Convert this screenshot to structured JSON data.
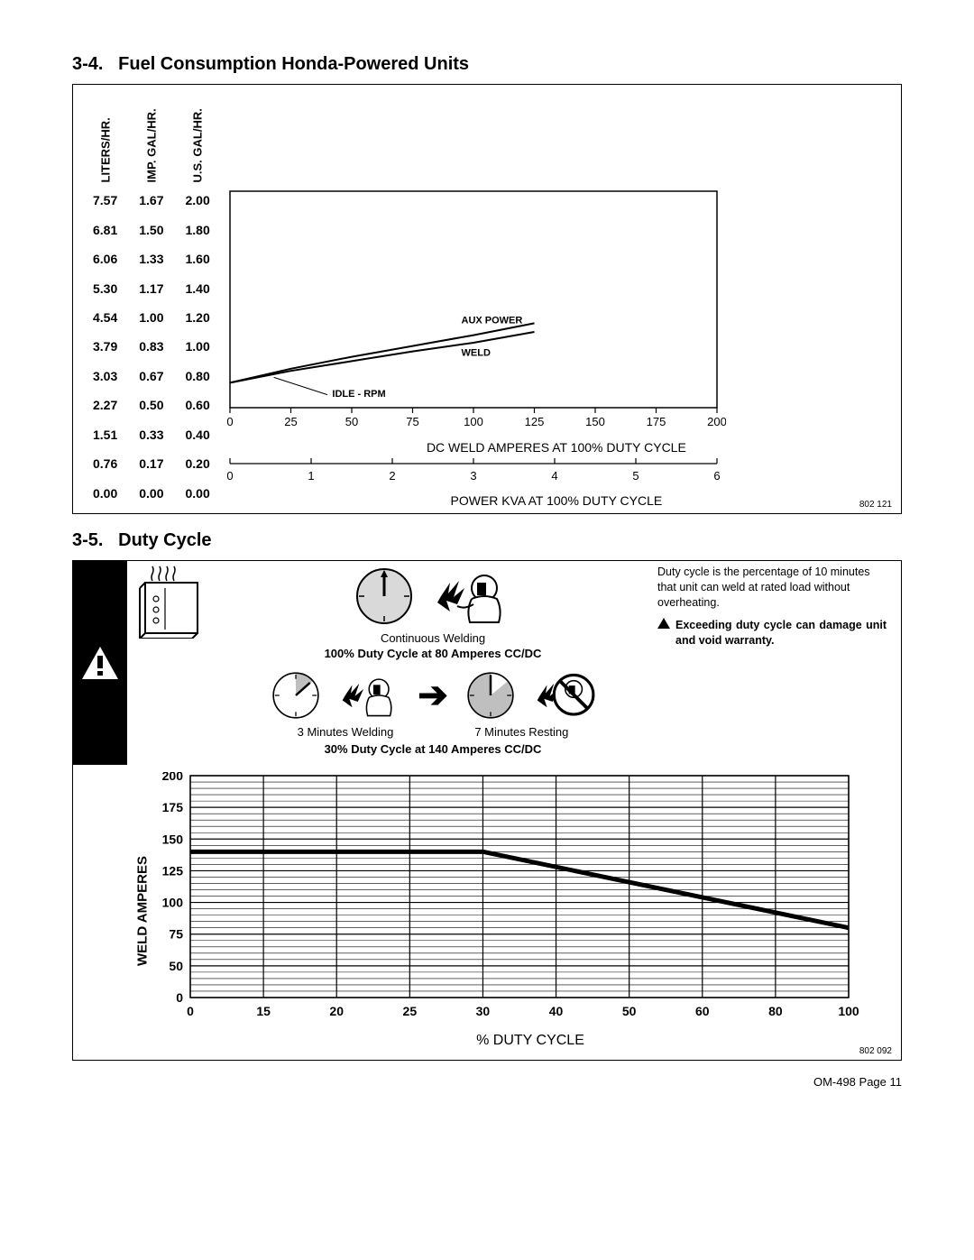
{
  "section34": {
    "number": "3-4.",
    "title": "Fuel Consumption Honda-Powered Units",
    "fig_ref": "802 121",
    "y_headers": [
      "LITERS/HR.",
      "IMP. GAL/HR.",
      "U.S. GAL/HR."
    ],
    "rows": [
      [
        "7.57",
        "1.67",
        "2.00"
      ],
      [
        "6.81",
        "1.50",
        "1.80"
      ],
      [
        "6.06",
        "1.33",
        "1.60"
      ],
      [
        "5.30",
        "1.17",
        "1.40"
      ],
      [
        "4.54",
        "1.00",
        "1.20"
      ],
      [
        "3.79",
        "0.83",
        "1.00"
      ],
      [
        "3.03",
        "0.67",
        "0.80"
      ],
      [
        "2.27",
        "0.50",
        "0.60"
      ],
      [
        "1.51",
        "0.33",
        "0.40"
      ],
      [
        "0.76",
        "0.17",
        "0.20"
      ],
      [
        "0.00",
        "0.00",
        "0.00"
      ]
    ],
    "chart": {
      "x_ticks_amps": [
        "0",
        "25",
        "50",
        "75",
        "100",
        "125",
        "150",
        "175",
        "200"
      ],
      "x_label_amps": "DC WELD AMPERES AT 100% DUTY CYCLE",
      "x_ticks_kva": [
        "0",
        "1",
        "2",
        "3",
        "4",
        "5",
        "6"
      ],
      "x_label_kva": "POWER KVA AT 100% DUTY CYCLE",
      "curve_labels": {
        "aux": "AUX POWER",
        "weld": "WELD",
        "idle": "IDLE - RPM"
      },
      "line_color": "#000000",
      "grid_color": "#000000"
    }
  },
  "section35": {
    "number": "3-5.",
    "title": "Duty Cycle",
    "fig_ref": "802 092",
    "desc": "Duty cycle is the percentage of 10 minutes that unit can weld at rated load without overheating.",
    "warn": "Exceeding duty cycle can damage unit and void warranty.",
    "continuous_label": "Continuous Welding",
    "cycle100_label": "100% Duty Cycle at 80 Amperes CC/DC",
    "welding3_label": "3 Minutes Welding",
    "resting7_label": "7 Minutes Resting",
    "cycle30_label": "30% Duty Cycle at 140 Amperes CC/DC",
    "chart": {
      "y_label": "WELD AMPERES",
      "x_label": "% DUTY CYCLE",
      "y_ticks": [
        "200",
        "175",
        "150",
        "125",
        "100",
        "75",
        "50",
        "0"
      ],
      "x_ticks": [
        "0",
        "15",
        "20",
        "25",
        "30",
        "40",
        "50",
        "60",
        "80",
        "100"
      ],
      "minor_per_major": 5,
      "line_color": "#000000",
      "line_width": 5,
      "grid_color": "#000000",
      "data": [
        {
          "x": 0,
          "y": 140
        },
        {
          "x": 30,
          "y": 140
        },
        {
          "x": 100,
          "y": 80
        }
      ]
    }
  },
  "footer": "OM-498 Page 11"
}
